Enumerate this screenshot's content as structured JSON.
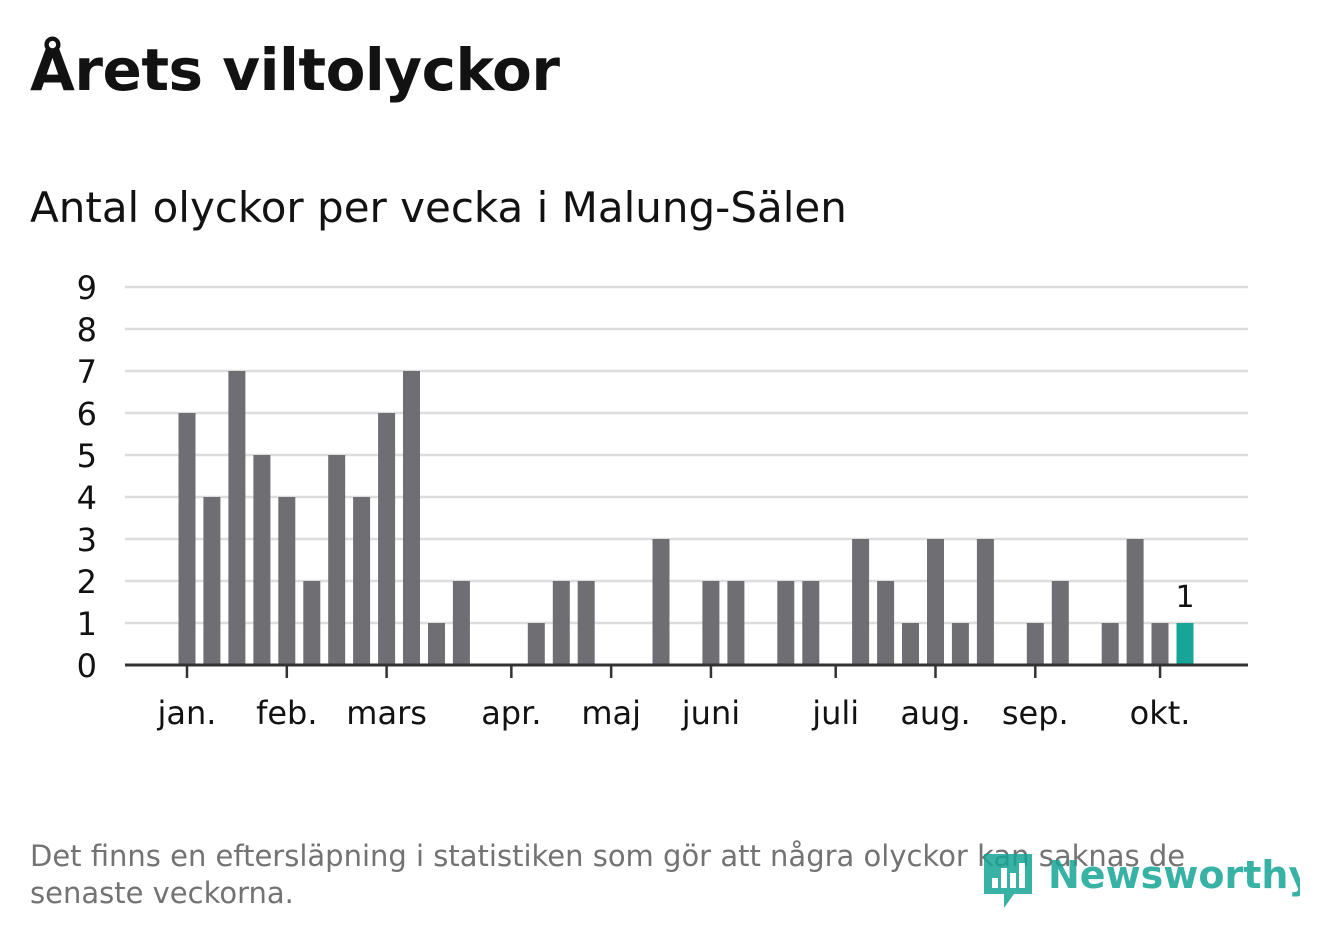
{
  "title": "Årets viltolyckor",
  "subtitle": "Antal olyckor per vecka i Malung-Sälen",
  "footnote": "Det finns en eftersläpning i statistiken som gör att några olyckor kan saknas de senaste veckorna.",
  "logo_text": "Newsworthy",
  "colors": {
    "bar": "#6f6e73",
    "highlight": "#16a596",
    "grid": "#dddddd",
    "axis": "#333333",
    "logo": "#16a596"
  },
  "chart_data": {
    "type": "bar",
    "ylim": [
      0,
      9
    ],
    "yticks": [
      0,
      1,
      2,
      3,
      4,
      5,
      6,
      7,
      8,
      9
    ],
    "grid": true,
    "month_ticks": [
      {
        "label": "jan.",
        "week": 1
      },
      {
        "label": "feb.",
        "week": 5
      },
      {
        "label": "mars",
        "week": 9
      },
      {
        "label": "apr.",
        "week": 14
      },
      {
        "label": "maj",
        "week": 18
      },
      {
        "label": "juni",
        "week": 22
      },
      {
        "label": "juli",
        "week": 27
      },
      {
        "label": "aug.",
        "week": 31
      },
      {
        "label": "sep.",
        "week": 35
      },
      {
        "label": "okt.",
        "week": 40
      }
    ],
    "weeks": [
      1,
      2,
      3,
      4,
      5,
      6,
      7,
      8,
      9,
      10,
      11,
      12,
      13,
      14,
      15,
      16,
      17,
      18,
      19,
      20,
      21,
      22,
      23,
      24,
      25,
      26,
      27,
      28,
      29,
      30,
      31,
      32,
      33,
      34,
      35,
      36,
      37,
      38,
      39,
      40,
      41
    ],
    "values": [
      6,
      4,
      7,
      5,
      4,
      2,
      5,
      4,
      6,
      7,
      1,
      2,
      0,
      0,
      1,
      2,
      2,
      0,
      0,
      3,
      0,
      2,
      2,
      0,
      2,
      2,
      0,
      3,
      2,
      1,
      3,
      1,
      3,
      0,
      1,
      2,
      0,
      1,
      3,
      1,
      1
    ],
    "highlight_index": 40,
    "highlight_label": "1"
  }
}
